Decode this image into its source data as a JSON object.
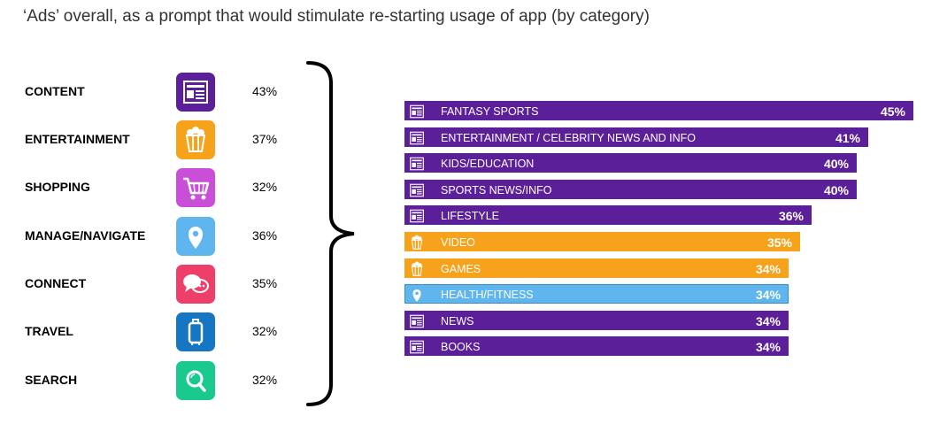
{
  "title": "‘Ads’ overall, as a prompt that would stimulate re-starting usage of app (by category)",
  "colors": {
    "purple": "#5c1f9a",
    "orange": "#f7a21b",
    "blue": "#5fb6ee",
    "shopping": "#c94fd8",
    "connect": "#ee3f6b",
    "travel": "#1577c4",
    "search": "#19c98e"
  },
  "categories": [
    {
      "label": "CONTENT",
      "value": "43%",
      "icon": "newspaper-icon",
      "color": "#5c1f9a"
    },
    {
      "label": "ENTERTAINMENT",
      "value": "37%",
      "icon": "popcorn-icon",
      "color": "#f7a21b"
    },
    {
      "label": "SHOPPING",
      "value": "32%",
      "icon": "cart-icon",
      "color": "#c94fd8"
    },
    {
      "label": "MANAGE/NAVIGATE",
      "value": "36%",
      "icon": "location-pin-icon",
      "color": "#5fb6ee"
    },
    {
      "label": "CONNECT",
      "value": "35%",
      "icon": "chat-bubbles-icon",
      "color": "#ee3f6b"
    },
    {
      "label": "TRAVEL",
      "value": "32%",
      "icon": "suitcase-icon",
      "color": "#1577c4"
    },
    {
      "label": "SEARCH",
      "value": "32%",
      "icon": "magnifier-icon",
      "color": "#19c98e"
    }
  ],
  "chart_data": {
    "type": "bar",
    "orientation": "horizontal",
    "title": "‘Ads’ overall, as a prompt that would stimulate re-starting usage of app (by category)",
    "categories": [
      "FANTASY SPORTS",
      "ENTERTAINMENT / CELEBRITY NEWS AND INFO",
      "KIDS/EDUCATION",
      "SPORTS NEWS/INFO",
      "LIFESTYLE",
      "VIDEO",
      "GAMES",
      "HEALTH/FITNESS",
      "NEWS",
      "BOOKS"
    ],
    "values": [
      45,
      41,
      40,
      40,
      36,
      35,
      34,
      34,
      34,
      34
    ],
    "value_labels": [
      "45%",
      "41%",
      "40%",
      "40%",
      "36%",
      "35%",
      "34%",
      "34%",
      "34%",
      "34%"
    ],
    "bar_groups": [
      "CONTENT",
      "CONTENT",
      "CONTENT",
      "CONTENT",
      "CONTENT",
      "ENTERTAINMENT",
      "ENTERTAINMENT",
      "MANAGE/NAVIGATE",
      "CONTENT",
      "CONTENT"
    ],
    "bar_icons": [
      "newspaper-icon",
      "newspaper-icon",
      "newspaper-icon",
      "newspaper-icon",
      "newspaper-icon",
      "popcorn-icon",
      "popcorn-icon",
      "location-pin-icon",
      "newspaper-icon",
      "newspaper-icon"
    ],
    "bar_colors": [
      "#5c1f9a",
      "#5c1f9a",
      "#5c1f9a",
      "#5c1f9a",
      "#5c1f9a",
      "#f7a21b",
      "#f7a21b",
      "#5fb6ee",
      "#5c1f9a",
      "#5c1f9a"
    ],
    "xlim": [
      0,
      45
    ],
    "xlabel": "",
    "ylabel": "",
    "grid": false,
    "legend": "none"
  }
}
